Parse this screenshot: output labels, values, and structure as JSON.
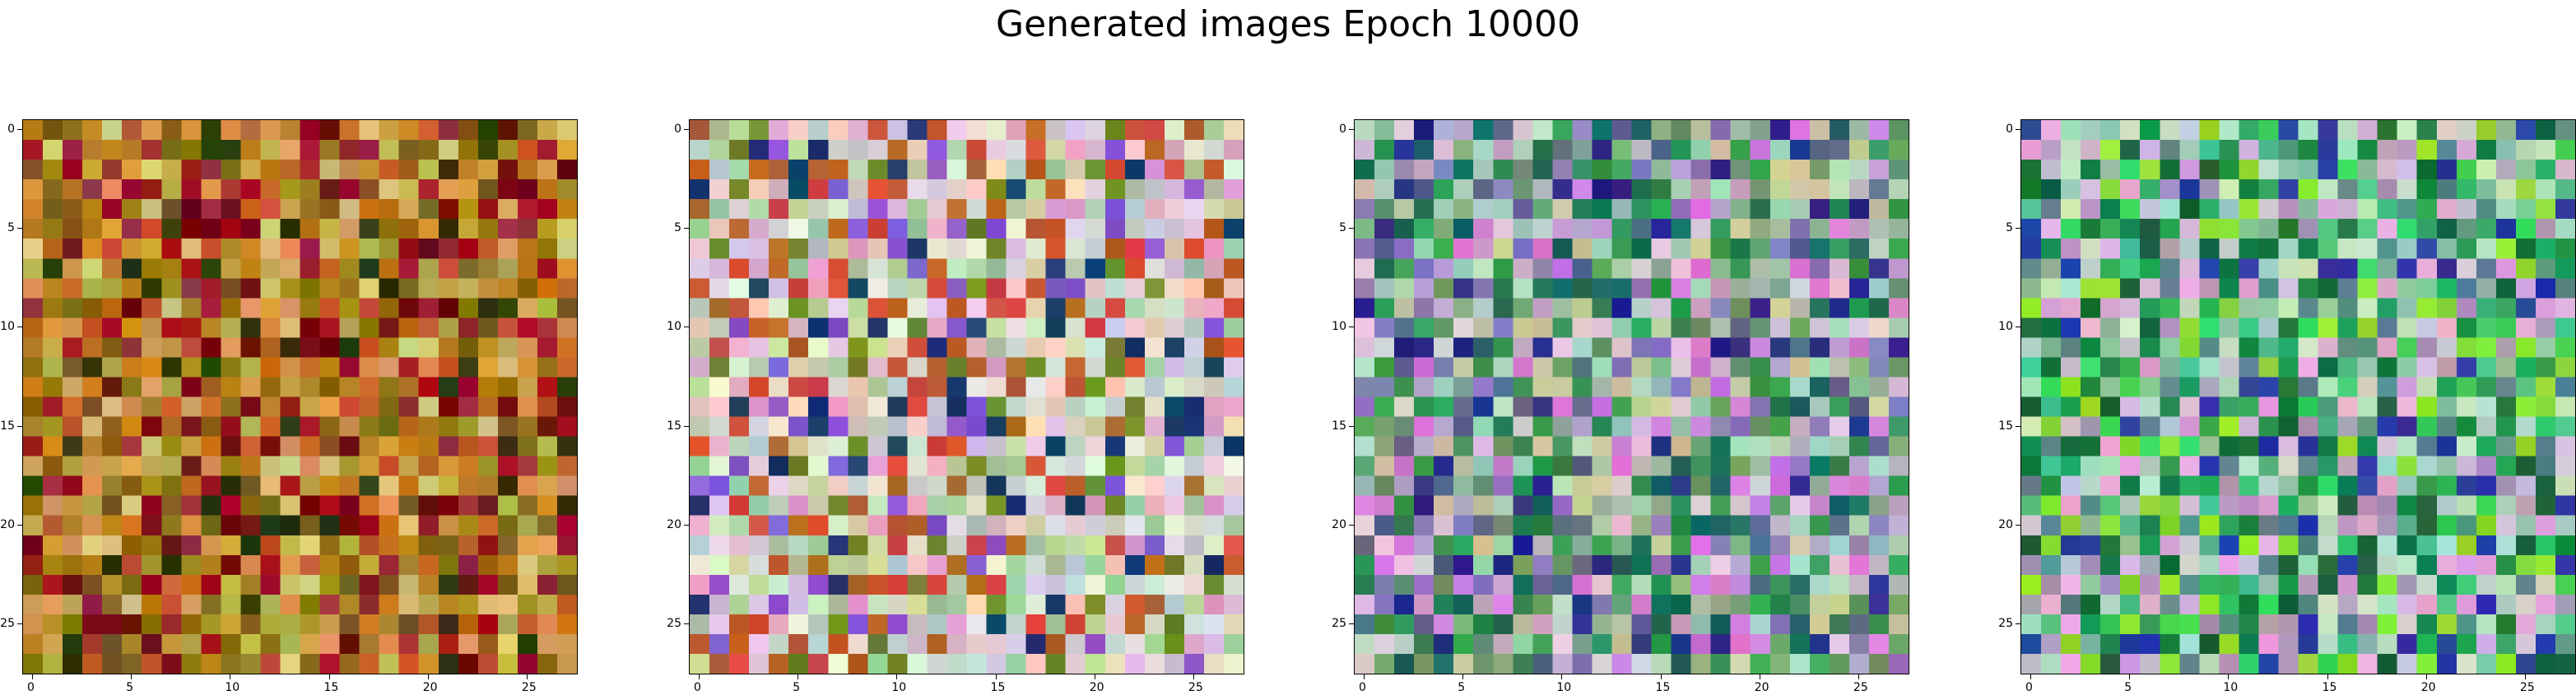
{
  "figure": {
    "title": "Generated images Epoch 10000"
  },
  "panels": [
    {
      "name": "generated-image-1",
      "palette": [
        "#c8831f",
        "#d39a42",
        "#a88b21",
        "#8e6b12",
        "#c35a2e",
        "#b8b04a",
        "#a31020",
        "#6f0a10",
        "#2e3a0a",
        "#d8c87a",
        "#c0741a",
        "#7c5f1a",
        "#de9a5a",
        "#9c2a3a"
      ]
    },
    {
      "name": "generated-image-2",
      "palette": [
        "#e6d8e0",
        "#cfe0d0",
        "#d8c6e0",
        "#bfc9c8",
        "#e8ecd8",
        "#f2d0c0",
        "#a3c9a0",
        "#e2a2c8",
        "#c9d6a0",
        "#d64a3a",
        "#b7642a",
        "#6f8a2a",
        "#1a3a6a",
        "#8a5ad0"
      ]
    },
    {
      "name": "generated-image-3",
      "palette": [
        "#6a9a6a",
        "#8ab08a",
        "#2e8a4a",
        "#3aa05a",
        "#a0c8b0",
        "#c0a8c8",
        "#8a7ab8",
        "#d27ad8",
        "#2a2a8a",
        "#1a6a5a",
        "#c8c8a0",
        "#b0d8c0",
        "#5a6a8a",
        "#e0c8d8"
      ]
    },
    {
      "name": "generated-image-4",
      "palette": [
        "#1a8a4a",
        "#2aaa5a",
        "#4ac08a",
        "#8ac0a0",
        "#a8d8c8",
        "#d0c0d8",
        "#c8e0c0",
        "#3ad060",
        "#1a6a3a",
        "#5a8a8a",
        "#e0a8d8",
        "#2a3aa0",
        "#90e030",
        "#b09ab8"
      ]
    }
  ],
  "axes": {
    "x_ticks": [
      "0",
      "5",
      "10",
      "15",
      "20",
      "25"
    ],
    "y_ticks": [
      "0",
      "5",
      "10",
      "15",
      "20",
      "25"
    ]
  }
}
